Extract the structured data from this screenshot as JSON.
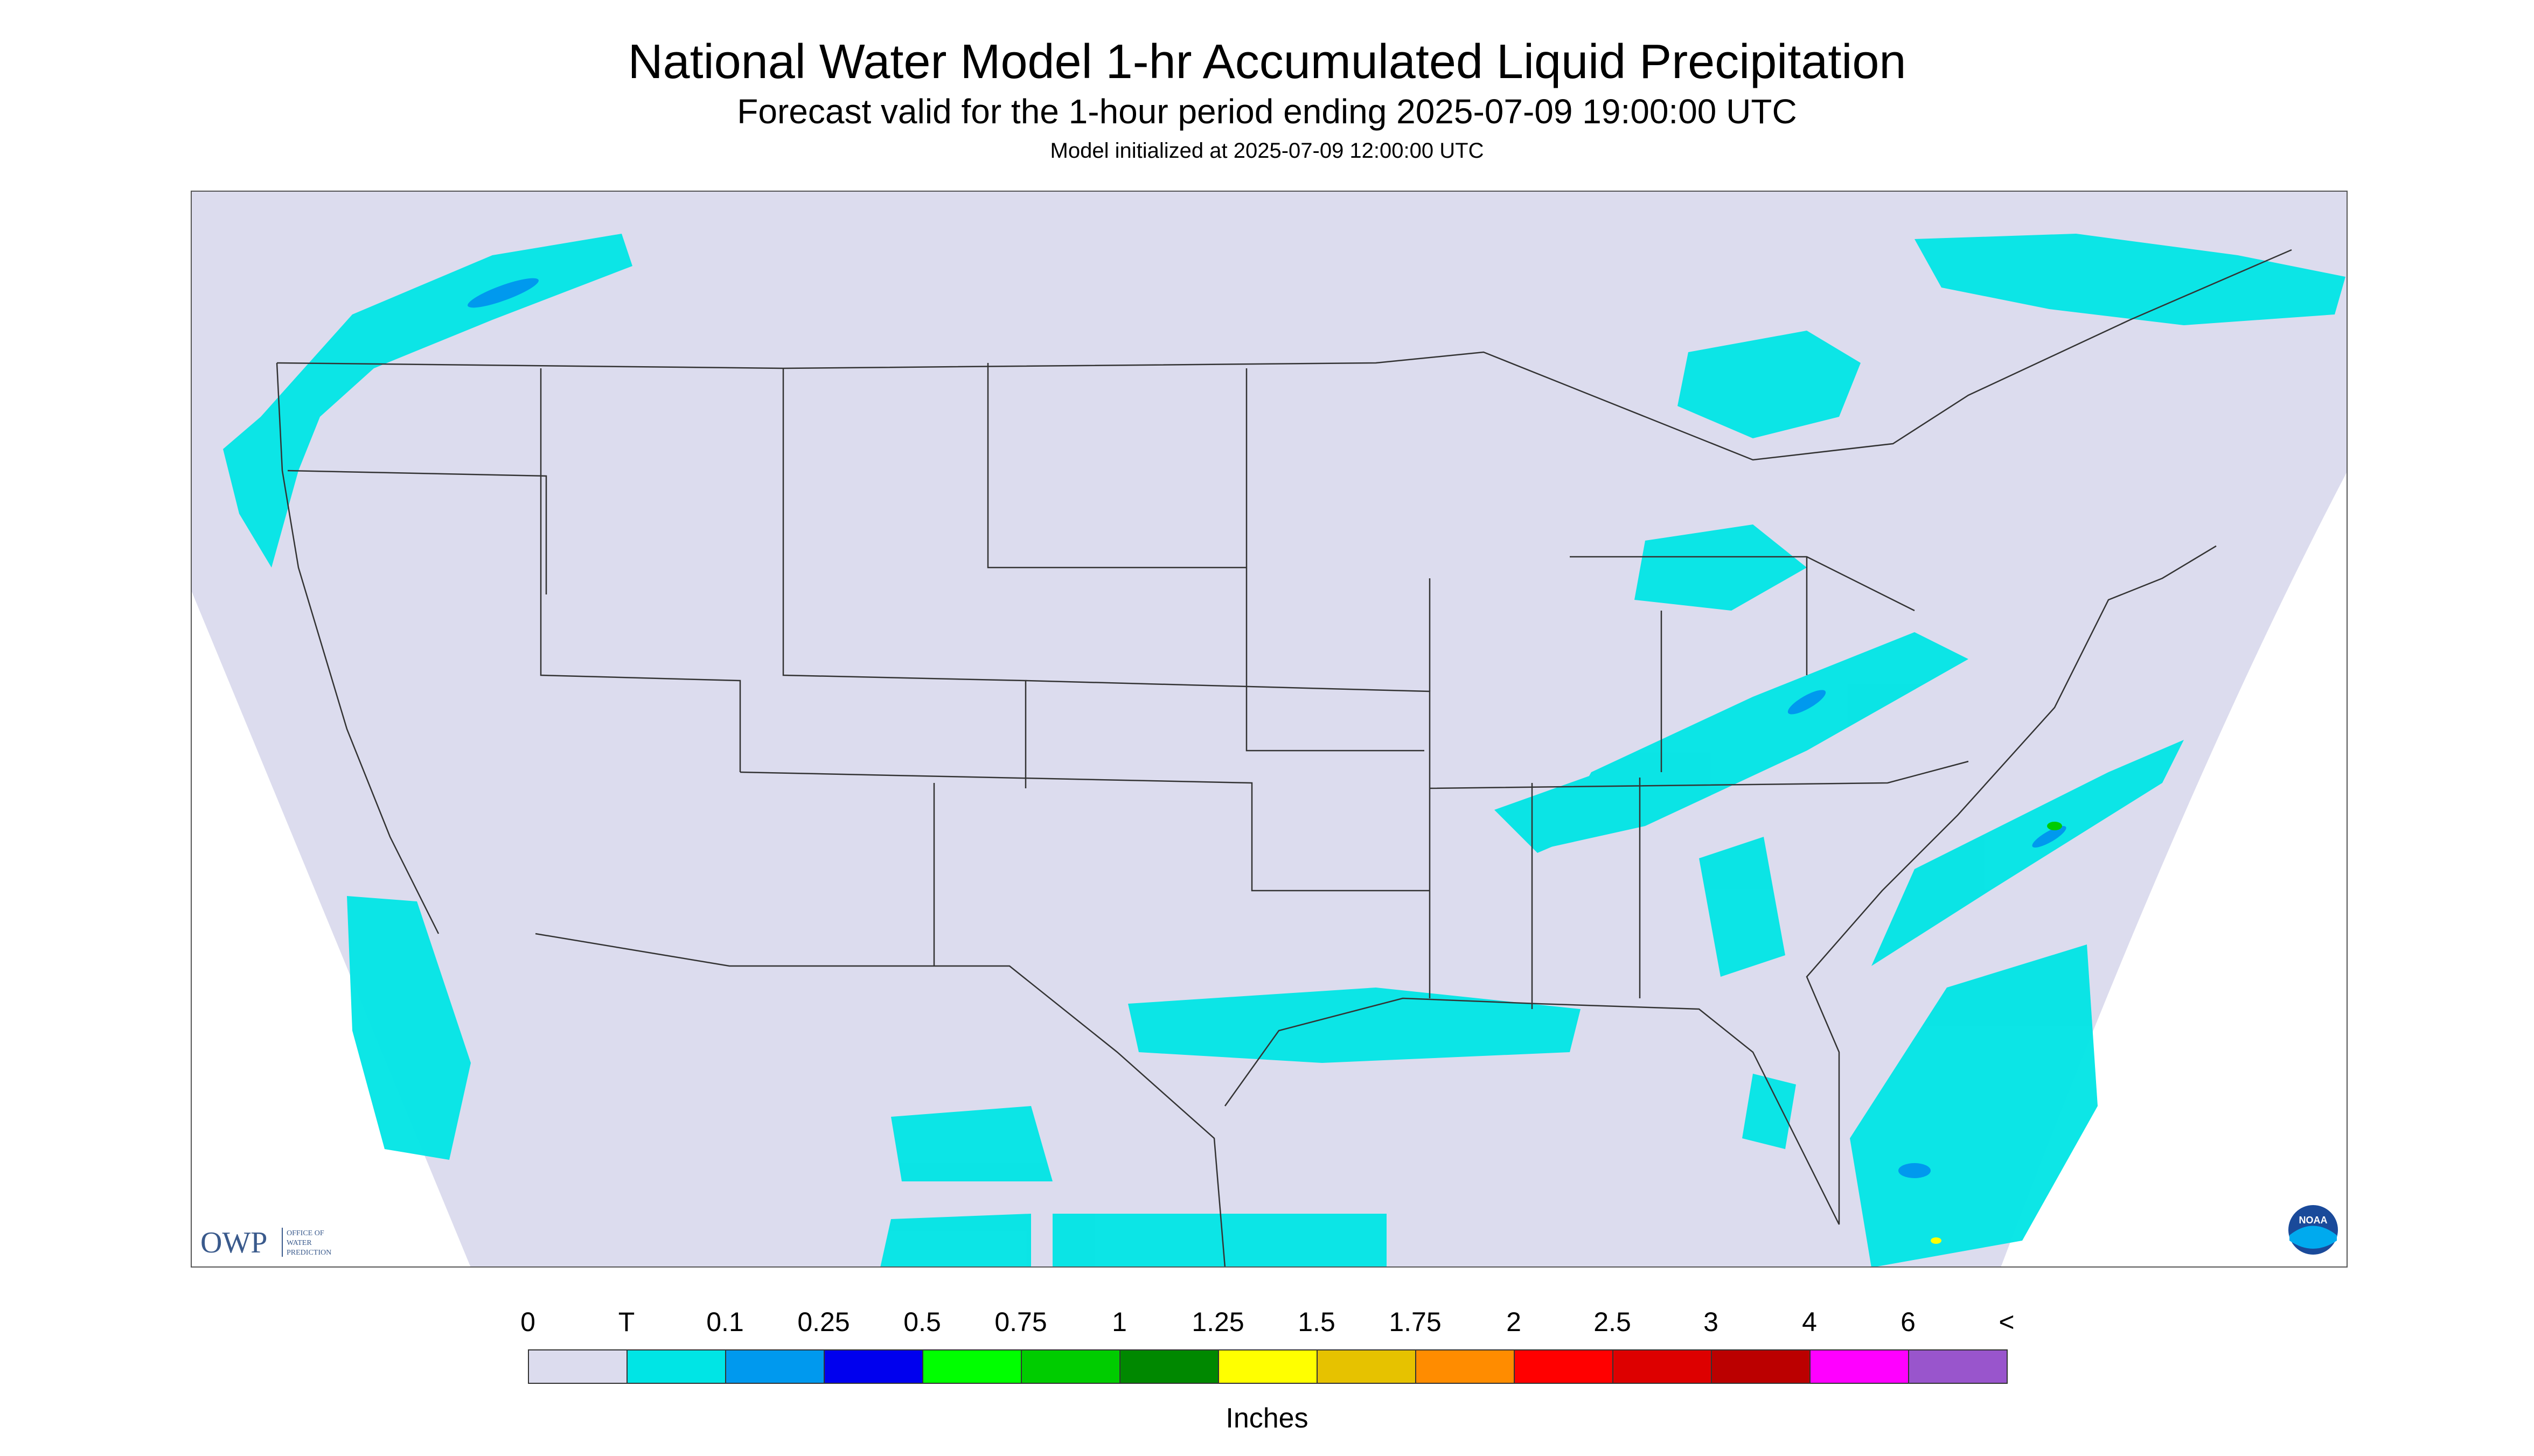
{
  "header": {
    "title": "National Water Model 1-hr Accumulated Liquid Precipitation",
    "subtitle": "Forecast valid for the 1-hour period ending 2025-07-09 19:00:00 UTC",
    "init": "Model initialized at 2025-07-09 12:00:00 UTC"
  },
  "map": {
    "background_color": "#dcdcee",
    "outside_color": "#ffffff",
    "boundary_color": "#333333",
    "logos": {
      "owp_text": "OWP",
      "owp_subtext": [
        "OFFICE OF",
        "WATER",
        "PREDICTION"
      ],
      "noaa_text": "NOAA"
    }
  },
  "legend": {
    "labels": [
      "0",
      "T",
      "0.1",
      "0.25",
      "0.5",
      "0.75",
      "1",
      "1.25",
      "1.5",
      "1.75",
      "2",
      "2.5",
      "3",
      "4",
      "6",
      "<"
    ],
    "colors": [
      "#dcdcee",
      "#00e5e5",
      "#0099ee",
      "#0000ee",
      "#00ff00",
      "#00cc00",
      "#008800",
      "#ffff00",
      "#e6c200",
      "#ff8c00",
      "#ff0000",
      "#dd0000",
      "#bb0000",
      "#ff00ff",
      "#9955cc"
    ],
    "units": "Inches"
  }
}
